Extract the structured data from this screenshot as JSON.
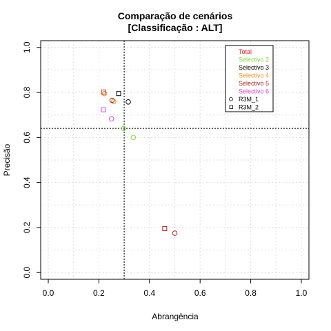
{
  "chart_data": {
    "type": "scatter",
    "title": "Comparação de cenários",
    "subtitle": "[Classificação : ALT]",
    "xlabel": "Abrangência",
    "ylabel": "Precisão",
    "xlim": [
      -0.03,
      1.03
    ],
    "ylim": [
      -0.03,
      1.03
    ],
    "x_ticks": [
      "0.0",
      "0.2",
      "0.4",
      "0.6",
      "0.8",
      "1.0"
    ],
    "y_ticks": [
      "0.0",
      "0.2",
      "0.4",
      "0.6",
      "0.8",
      "1.0"
    ],
    "grid": true,
    "reference_lines": {
      "vertical_x": 0.3,
      "horizontal_y": 0.64
    },
    "legend_position": "top-right",
    "series": [
      {
        "name": "Total",
        "color": "#e41a1c",
        "points": []
      },
      {
        "name": "Selectivo 2",
        "color": "#7fe030",
        "points": [
          {
            "x": 0.298,
            "y": 0.64,
            "shape": "circle"
          },
          {
            "x": 0.336,
            "y": 0.6,
            "shape": "circle"
          }
        ]
      },
      {
        "name": "Selectivo 3",
        "color": "#000000",
        "points": [
          {
            "x": 0.316,
            "y": 0.758,
            "shape": "circle"
          },
          {
            "x": 0.278,
            "y": 0.795,
            "shape": "square"
          }
        ]
      },
      {
        "name": "Selectivo 4",
        "color": "#ff8c1a",
        "points": [
          {
            "x": 0.258,
            "y": 0.76,
            "shape": "circle"
          },
          {
            "x": 0.222,
            "y": 0.795,
            "shape": "circle"
          }
        ]
      },
      {
        "name": "Selectivo 5",
        "color": "#b22222",
        "points": [
          {
            "x": 0.5,
            "y": 0.175,
            "shape": "circle"
          },
          {
            "x": 0.46,
            "y": 0.195,
            "shape": "square"
          },
          {
            "x": 0.252,
            "y": 0.765,
            "shape": "circle"
          },
          {
            "x": 0.218,
            "y": 0.802,
            "shape": "square"
          }
        ]
      },
      {
        "name": "Selectivo 6",
        "color": "#e040e0",
        "points": [
          {
            "x": 0.25,
            "y": 0.683,
            "shape": "circle"
          },
          {
            "x": 0.218,
            "y": 0.723,
            "shape": "square"
          }
        ]
      }
    ],
    "shape_legend": [
      {
        "name": "R3M_1",
        "shape": "circle"
      },
      {
        "name": "R3M_2",
        "shape": "square"
      }
    ]
  }
}
